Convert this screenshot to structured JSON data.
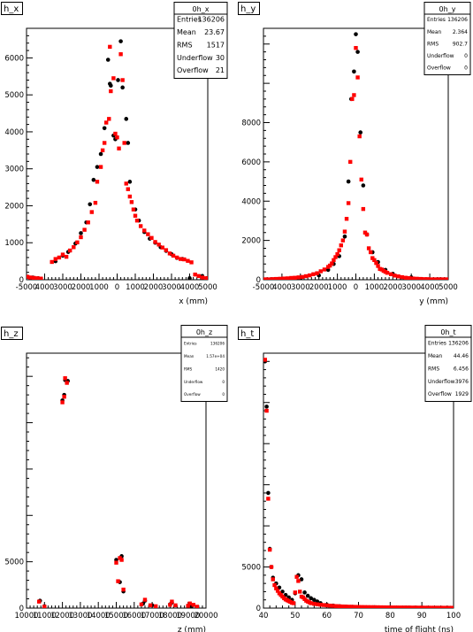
{
  "chart_data": [
    {
      "type": "scatter",
      "title": "h_x",
      "xlabel": "x (mm)",
      "ylabel": "",
      "xlim": [
        -5000,
        5000
      ],
      "ylim": [
        0,
        6800
      ],
      "xticks": [
        -5000,
        -4000,
        -3000,
        -2000,
        -1000,
        0,
        1000,
        2000,
        3000,
        4000,
        5000
      ],
      "xticklabels": [
        "-5000",
        "4000",
        "3000",
        "2000",
        "1000",
        "0",
        "1000",
        "2000",
        "3000",
        "4000",
        "5000"
      ],
      "yticks": [
        0,
        1000,
        2000,
        3000,
        4000,
        5000,
        6000
      ],
      "stats": {
        "name": "0h_x",
        "rows": [
          [
            "Entries",
            "136206"
          ],
          [
            "Mean",
            "23.67"
          ],
          [
            "RMS",
            "1517"
          ],
          [
            "Underflow",
            "30"
          ],
          [
            "Overflow",
            "21"
          ]
        ]
      },
      "series": [
        {
          "color": "#000000",
          "marker": "circle",
          "x": [
            -4950,
            -4650,
            -4350,
            -3400,
            -3000,
            -2700,
            -2300,
            -2000,
            -1700,
            -1500,
            -1300,
            -1100,
            -900,
            -700,
            -500,
            -400,
            -350,
            -200,
            -100,
            50,
            200,
            300,
            500,
            600,
            700,
            1000,
            1200,
            1500,
            1800,
            2100,
            2400,
            2700,
            3000,
            3300,
            3600,
            4000,
            4700,
            4950
          ],
          "y": [
            80,
            60,
            40,
            500,
            650,
            750,
            980,
            1260,
            1550,
            2040,
            2700,
            3050,
            3400,
            4100,
            5950,
            5300,
            5250,
            3900,
            3800,
            5400,
            6450,
            5200,
            4350,
            3700,
            2650,
            1900,
            1600,
            1290,
            1110,
            1000,
            880,
            780,
            690,
            590,
            560,
            40,
            100,
            40
          ]
        },
        {
          "color": "#ff0000",
          "marker": "square",
          "x": [
            -4950,
            -4800,
            -4600,
            -4400,
            -4200,
            -3600,
            -3400,
            -3200,
            -3000,
            -2800,
            -2600,
            -2400,
            -2200,
            -2000,
            -1800,
            -1600,
            -1400,
            -1200,
            -1100,
            -900,
            -800,
            -700,
            -600,
            -450,
            -400,
            -350,
            -200,
            -100,
            0,
            100,
            200,
            300,
            400,
            500,
            600,
            700,
            800,
            900,
            1000,
            1100,
            1300,
            1500,
            1700,
            1900,
            2100,
            2300,
            2500,
            2700,
            2900,
            3100,
            3300,
            3500,
            3700,
            3900,
            4100,
            4300,
            4500,
            4700,
            4900
          ],
          "y": [
            80,
            60,
            50,
            40,
            30,
            480,
            560,
            600,
            680,
            620,
            790,
            880,
            1010,
            1150,
            1350,
            1550,
            1830,
            2080,
            2650,
            3050,
            3500,
            3700,
            4250,
            4350,
            6300,
            5100,
            5450,
            3950,
            3850,
            3550,
            6100,
            5400,
            3700,
            2600,
            2450,
            2250,
            2100,
            1900,
            1730,
            1600,
            1450,
            1330,
            1230,
            1130,
            1020,
            950,
            870,
            800,
            710,
            650,
            600,
            560,
            550,
            510,
            470,
            140,
            100,
            60,
            40
          ]
        }
      ]
    },
    {
      "type": "scatter",
      "title": "h_y",
      "xlabel": "y (mm)",
      "ylabel": "",
      "xlim": [
        -5000,
        5000
      ],
      "ylim": [
        0,
        12800
      ],
      "xticks": [
        -5000,
        -4000,
        -3000,
        -2000,
        -1000,
        0,
        1000,
        2000,
        3000,
        4000,
        5000
      ],
      "xticklabels": [
        "-5000",
        "4000",
        "3000",
        "2000",
        "1000",
        "0",
        "1000",
        "2000",
        "3000",
        "4000",
        "5000"
      ],
      "yticks": [
        0,
        2000,
        4000,
        6000,
        8000
      ],
      "stats": {
        "name": "0h_y",
        "rows": [
          [
            "Entries",
            "136206"
          ],
          [
            "Mean",
            "2.364"
          ],
          [
            "RMS",
            "902.7"
          ],
          [
            "Underflow",
            "0"
          ],
          [
            "Overflow",
            "0"
          ]
        ]
      },
      "series": [
        {
          "color": "#000000",
          "marker": "circle",
          "x": [
            -4500,
            -3000,
            -2000,
            -1500,
            -1200,
            -900,
            -600,
            -400,
            -250,
            -100,
            0,
            100,
            250,
            400,
            600,
            900,
            1200,
            1600,
            2000,
            3000,
            4500
          ],
          "y": [
            20,
            80,
            220,
            500,
            800,
            1200,
            2200,
            5000,
            9200,
            10600,
            12500,
            11600,
            7500,
            4800,
            2300,
            1400,
            900,
            500,
            300,
            120,
            20
          ]
        },
        {
          "color": "#ff0000",
          "marker": "square",
          "x": [
            -4900,
            -4700,
            -4500,
            -4300,
            -4100,
            -3900,
            -3700,
            -3500,
            -3300,
            -3100,
            -2900,
            -2700,
            -2500,
            -2300,
            -2100,
            -1900,
            -1700,
            -1500,
            -1400,
            -1300,
            -1200,
            -1100,
            -1000,
            -900,
            -800,
            -700,
            -600,
            -500,
            -400,
            -300,
            -200,
            -100,
            0,
            100,
            200,
            300,
            400,
            500,
            600,
            700,
            800,
            900,
            1000,
            1100,
            1200,
            1300,
            1400,
            1500,
            1600,
            1700,
            1900,
            2100,
            2300,
            2500,
            2700,
            2900,
            3100,
            3300,
            3500,
            3700,
            3900,
            4100,
            4300,
            4500,
            4700,
            4900
          ],
          "y": [
            20,
            20,
            30,
            40,
            50,
            60,
            70,
            90,
            100,
            120,
            140,
            180,
            220,
            280,
            330,
            430,
            520,
            650,
            720,
            830,
            1000,
            1150,
            1300,
            1500,
            1750,
            2000,
            2450,
            3100,
            3900,
            6000,
            9200,
            9400,
            11800,
            10300,
            7300,
            5100,
            3600,
            2400,
            2300,
            1600,
            1400,
            1100,
            1000,
            850,
            700,
            550,
            520,
            450,
            400,
            350,
            280,
            210,
            170,
            130,
            100,
            80,
            60,
            50,
            40,
            30,
            30,
            20,
            20,
            20,
            20,
            20
          ]
        }
      ]
    },
    {
      "type": "scatter",
      "title": "h_z",
      "xlabel": "z (mm)",
      "ylabel": "",
      "xlim": [
        10000,
        20000
      ],
      "ylim": [
        0,
        27500
      ],
      "xticks": [
        10000,
        11000,
        12000,
        13000,
        14000,
        15000,
        16000,
        17000,
        18000,
        19000,
        20000
      ],
      "xticklabels": [
        "10000",
        "11000",
        "12000",
        "13000",
        "14000",
        "15000",
        "16000",
        "17000",
        "18000",
        "19000",
        "20000"
      ],
      "yticks": [
        0,
        5000
      ],
      "stats": {
        "name": "0h_z",
        "rows": [
          [
            "Entries",
            "136206"
          ],
          [
            "Mean",
            "1.57e+04"
          ],
          [
            "RMS",
            "1420"
          ],
          [
            "Underflow",
            "0"
          ],
          [
            "Overflow",
            "0"
          ]
        ]
      },
      "series": [
        {
          "color": "#000000",
          "marker": "circle",
          "x": [
            10750,
            11000,
            12000,
            12100,
            12150,
            12300,
            15000,
            15200,
            15300,
            15400,
            16500,
            16600,
            17000,
            18000,
            18100,
            19000,
            19100,
            19200
          ],
          "y": [
            800,
            200,
            22400,
            23000,
            24600,
            24500,
            5200,
            2800,
            5600,
            1800,
            500,
            800,
            300,
            400,
            600,
            200,
            300,
            200
          ]
        },
        {
          "color": "#ff0000",
          "marker": "square",
          "x": [
            10700,
            11000,
            12000,
            12100,
            12150,
            12250,
            15000,
            15100,
            15200,
            15300,
            15400,
            16400,
            16600,
            16900,
            17200,
            18000,
            18100,
            18300,
            19000,
            19100,
            19300,
            19500
          ],
          "y": [
            700,
            150,
            22200,
            22800,
            24800,
            24300,
            4900,
            2900,
            5400,
            5200,
            2000,
            400,
            900,
            300,
            200,
            350,
            700,
            300,
            250,
            500,
            350,
            150
          ]
        }
      ]
    },
    {
      "type": "scatter",
      "title": "h_t",
      "xlabel": "time of flight (ns)",
      "ylabel": "",
      "xlim": [
        40,
        100
      ],
      "ylim": [
        0,
        31000
      ],
      "xticks": [
        40,
        50,
        60,
        70,
        80,
        90,
        100
      ],
      "xticklabels": [
        "40",
        "50",
        "60",
        "70",
        "80",
        "90",
        "100"
      ],
      "yticks": [
        0,
        5000
      ],
      "stats": {
        "name": "0h_t",
        "rows": [
          [
            "Entries",
            "136206"
          ],
          [
            "Mean",
            "44.46"
          ],
          [
            "RMS",
            "6.456"
          ],
          [
            "Underflow",
            "3976"
          ],
          [
            "Overflow",
            "1929"
          ]
        ]
      },
      "series": [
        {
          "color": "#000000",
          "marker": "circle",
          "x": [
            40.5,
            41,
            41.5,
            42,
            42.5,
            43,
            44,
            45,
            46,
            47,
            48,
            49,
            50,
            51,
            52,
            53,
            54,
            55,
            56,
            57,
            58,
            60,
            62,
            64,
            66,
            68,
            70,
            75,
            80,
            85,
            90,
            95,
            99
          ],
          "y": [
            30000,
            24500,
            14000,
            7200,
            5000,
            3700,
            3000,
            2500,
            2000,
            1600,
            1300,
            1000,
            1800,
            4000,
            3500,
            1900,
            1500,
            1200,
            1000,
            800,
            600,
            400,
            300,
            220,
            180,
            150,
            120,
            100,
            80,
            60,
            50,
            40,
            30
          ]
        },
        {
          "color": "#ff0000",
          "marker": "square",
          "x": [
            40.5,
            41,
            41.5,
            42,
            42.5,
            43,
            43.5,
            44,
            44.5,
            45,
            45.5,
            46,
            46.5,
            47,
            47.5,
            48,
            48.5,
            49,
            49.5,
            50,
            50.5,
            51,
            51.5,
            52,
            52.5,
            53,
            53.5,
            54,
            54.5,
            55,
            56,
            57,
            58,
            59,
            60,
            61,
            62,
            63,
            64,
            65,
            66,
            67,
            68,
            69,
            70,
            71,
            72,
            73,
            74,
            75,
            76,
            77,
            78,
            79,
            80,
            81,
            82,
            83,
            84,
            85,
            86,
            87,
            88,
            89,
            90,
            91,
            92,
            93,
            94,
            95,
            96,
            97,
            98,
            99,
            100
          ],
          "y": [
            30200,
            24000,
            13300,
            7100,
            5000,
            3500,
            2800,
            2400,
            2100,
            1800,
            1600,
            1400,
            1200,
            1050,
            950,
            850,
            750,
            650,
            600,
            1900,
            3800,
            3300,
            2000,
            1400,
            1300,
            1100,
            900,
            800,
            700,
            600,
            520,
            460,
            410,
            370,
            330,
            300,
            270,
            245,
            220,
            200,
            185,
            170,
            160,
            150,
            140,
            130,
            125,
            120,
            115,
            110,
            105,
            100,
            95,
            90,
            85,
            80,
            78,
            75,
            72,
            70,
            68,
            65,
            62,
            60,
            58,
            55,
            52,
            50,
            48,
            46,
            44,
            42,
            40,
            38,
            36
          ]
        }
      ]
    }
  ]
}
